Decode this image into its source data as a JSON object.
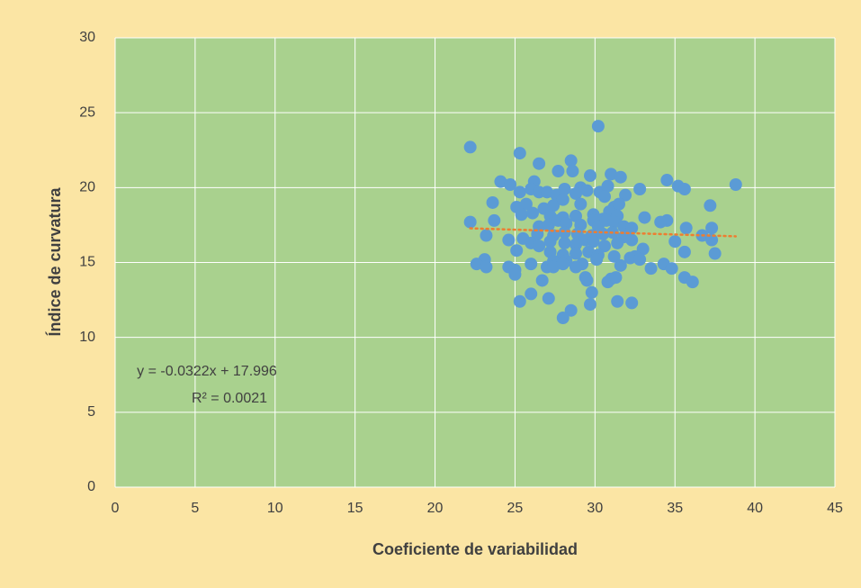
{
  "chart_data": {
    "type": "scatter",
    "x_label": "Coeficiente de variabilidad",
    "y_label": "Índice de curvatura",
    "x": [
      22.2,
      25.3,
      30.2,
      26.5,
      28.5,
      27.7,
      38.8,
      34.5,
      35.2,
      35.6,
      32.8,
      31.0,
      31.6,
      24.1,
      24.7,
      26.2,
      29.7,
      29.1,
      28.6,
      25.3,
      26.0,
      26.5,
      27.0,
      27.6,
      28.1,
      28.8,
      29.5,
      30.3,
      30.8,
      31.9,
      23.6,
      37.2,
      25.1,
      25.7,
      26.8,
      27.4,
      28.0,
      29.1,
      30.6,
      31.2,
      31.5,
      22.2,
      23.7,
      25.4,
      26.1,
      27.2,
      28.0,
      28.8,
      29.9,
      30.5,
      30.9,
      31.4,
      33.1,
      34.5,
      34.1,
      26.5,
      27.1,
      27.7,
      28.2,
      29.1,
      29.9,
      30.2,
      30.7,
      31.2,
      31.8,
      35.7,
      37.3,
      32.3,
      23.2,
      25.5,
      26.4,
      27.4,
      28.1,
      28.9,
      29.8,
      30.5,
      31.1,
      31.8,
      36.7,
      37.3,
      24.6,
      25.1,
      26.0,
      26.5,
      27.2,
      28.1,
      28.8,
      29.4,
      29.9,
      30.6,
      31.4,
      32.3,
      35.0,
      33.0,
      37.5,
      35.6,
      27.2,
      28.0,
      28.8,
      29.6,
      30.2,
      31.2,
      32.2,
      27.4,
      28.2,
      29.2,
      30.1,
      23.1,
      22.6,
      23.2,
      24.6,
      25.0,
      26.0,
      27.0,
      27.4,
      28.0,
      28.8,
      31.6,
      32.5,
      32.8,
      33.5,
      34.3,
      34.8,
      25.0,
      29.4,
      31.0,
      30.8,
      31.3,
      35.6,
      36.1,
      26.7,
      29.5,
      26.0,
      29.8,
      27.1,
      25.3,
      31.4,
      32.3,
      29.7,
      28.5,
      28.0
    ],
    "y": [
      22.7,
      22.3,
      24.1,
      21.6,
      21.8,
      21.1,
      20.2,
      20.5,
      20.1,
      19.9,
      19.9,
      20.9,
      20.7,
      20.4,
      20.2,
      20.4,
      20.8,
      20.0,
      21.1,
      19.7,
      19.9,
      19.7,
      19.7,
      19.5,
      19.9,
      19.6,
      19.8,
      19.7,
      20.1,
      19.5,
      19.0,
      18.8,
      18.7,
      18.9,
      18.6,
      18.8,
      19.2,
      18.9,
      19.4,
      18.7,
      18.9,
      17.7,
      17.8,
      18.2,
      18.3,
      18.1,
      18.0,
      18.1,
      18.2,
      17.9,
      18.4,
      18.1,
      18.0,
      17.8,
      17.7,
      17.4,
      17.5,
      17.8,
      17.6,
      17.5,
      17.8,
      17.4,
      17.8,
      17.7,
      17.4,
      17.3,
      17.3,
      17.3,
      16.8,
      16.6,
      16.9,
      16.8,
      17.0,
      16.9,
      16.8,
      16.9,
      17.0,
      16.7,
      16.8,
      16.5,
      16.5,
      15.8,
      16.3,
      16.1,
      16.4,
      16.3,
      16.2,
      16.5,
      16.4,
      16.1,
      16.3,
      16.5,
      16.4,
      15.9,
      15.6,
      15.7,
      15.7,
      15.5,
      15.6,
      15.7,
      15.5,
      15.4,
      15.3,
      15.1,
      15.1,
      14.9,
      15.2,
      15.2,
      14.9,
      14.7,
      14.7,
      14.5,
      14.9,
      14.7,
      14.7,
      14.9,
      14.7,
      14.8,
      15.4,
      15.2,
      14.6,
      14.9,
      14.6,
      14.2,
      14.0,
      13.9,
      13.7,
      14.0,
      14.0,
      13.7,
      13.8,
      13.8,
      12.9,
      13.0,
      12.6,
      12.4,
      12.4,
      12.3,
      12.2,
      11.8,
      11.3
    ],
    "color": "#5b9bd5",
    "xlim": [
      0,
      45
    ],
    "xticks": [
      0,
      5,
      10,
      15,
      20,
      25,
      30,
      35,
      40,
      45
    ],
    "ylim": [
      0,
      30
    ],
    "yticks": [
      0,
      5,
      10,
      15,
      20,
      25,
      30
    ],
    "grid": true,
    "trendline": {
      "equation": "y = -0.0322x + 17.996",
      "r2": "R² = 0.0021",
      "slope": -0.0322,
      "intercept": 17.996,
      "color": "#ed7d31"
    }
  }
}
